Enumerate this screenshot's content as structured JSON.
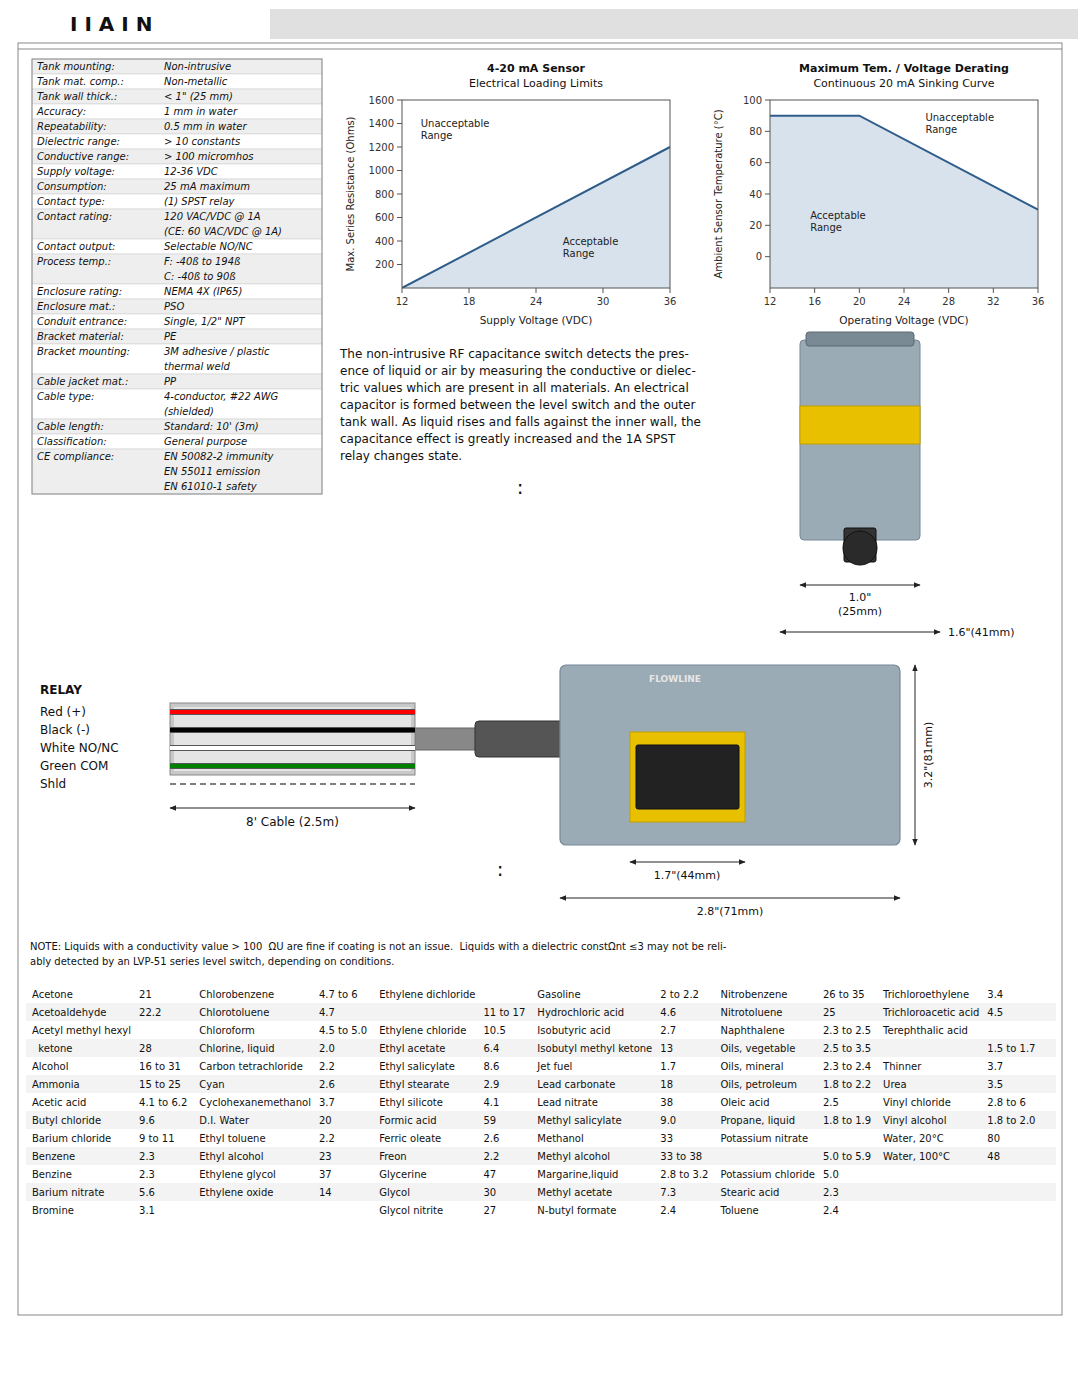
{
  "title": "I I A I N",
  "chart_data": [
    {
      "type": "area",
      "title": "4-20 mA Sensor",
      "subtitle": "Electrical Loading Limits",
      "xlabel": "Supply Voltage (VDC)",
      "ylabel": "Max. Series Resistance (Ohms)",
      "x": [
        12,
        36
      ],
      "values": [
        0,
        1200
      ],
      "xlim": [
        12,
        36
      ],
      "ylim": [
        0,
        1600
      ],
      "xticks": [
        12,
        18,
        24,
        30,
        36
      ],
      "yticks": [
        200,
        400,
        600,
        800,
        1000,
        1200,
        1400,
        1600
      ],
      "grid": false,
      "annotations": [
        "Unacceptable\nRange",
        "Acceptable\nRange"
      ]
    },
    {
      "type": "area",
      "title": "Maximum Tem. / Voltage Derating",
      "subtitle": "Continuous 20 mA Sinking Curve",
      "xlabel": "Operating Voltage (VDC)",
      "ylabel": "Ambient Sensor Temperature (°C)",
      "x": [
        12,
        20,
        36
      ],
      "values": [
        90,
        90,
        30
      ],
      "xlim": [
        12,
        36
      ],
      "ylim": [
        -20,
        100
      ],
      "xticks": [
        12,
        16,
        20,
        24,
        28,
        32,
        36
      ],
      "yticks": [
        0,
        20,
        40,
        60,
        80,
        100
      ],
      "grid": false,
      "annotations": [
        "Unacceptable\nRange",
        "Acceptable\nRange"
      ]
    }
  ],
  "specs_table": [
    [
      "Tank mounting:",
      "Non-intrusive"
    ],
    [
      "Tank mat. comp.:",
      "Non-metallic"
    ],
    [
      "Tank wall thick.:",
      "< 1\" (25 mm)"
    ],
    [
      "Accuracy:",
      "1 mm in water"
    ],
    [
      "Repeatability:",
      "0.5 mm in water"
    ],
    [
      "Dielectric range:",
      "> 10 constants"
    ],
    [
      "Conductive range:",
      "> 100 micromhos"
    ],
    [
      "Supply voltage:",
      "12-36 VDC"
    ],
    [
      "Consumption:",
      "25 mA maximum"
    ],
    [
      "Contact type:",
      "(1) SPST relay"
    ],
    [
      "Contact rating:",
      "120 VAC/VDC @ 1A\n(CE: 60 VAC/VDC @ 1A)"
    ],
    [
      "Contact output:",
      "Selectable NO/NC"
    ],
    [
      "Process temp.:",
      "F: -40ß to 194ß\nC: -40ß to 90ß"
    ],
    [
      "Enclosure rating:",
      "NEMA 4X (IP65)"
    ],
    [
      "Enclosure mat.:",
      "PSO"
    ],
    [
      "Conduit entrance:",
      "Single, 1/2\" NPT"
    ],
    [
      "Bracket material:",
      "PE"
    ],
    [
      "Bracket mounting:",
      "3M adhesive / plastic\nthermal weld"
    ],
    [
      "Cable jacket mat.:",
      "PP"
    ],
    [
      "Cable type:",
      "4-conductor, #22 AWG\n(shielded)"
    ],
    [
      "Cable length:",
      "Standard: 10' (3m)"
    ],
    [
      "Classification:",
      "General purpose"
    ],
    [
      "CE compliance:",
      "EN 50082-2 immunity\nEN 55011 emission\nEN 61010-1 safety"
    ]
  ],
  "description": [
    "The non-intrusive RF capacitance switch detects the pres-",
    "ence of liquid or air by measuring the conductive or dielec-",
    "tric values which are present in all materials. An electrical",
    "capacitor is formed between the level switch and the outer",
    "tank wall. As liquid rises and falls against the inner wall, the",
    "capacitance effect is greatly increased and the 1A SPST",
    "relay changes state."
  ],
  "separators": [
    ":",
    ":"
  ],
  "sensor_top": {
    "width": [
      "1.0\"",
      "(25mm)"
    ],
    "overall_width": "1.6\"(41mm)"
  },
  "sensor_bottom": {
    "brand": "FLOWLINE",
    "height": "3.2\"(81mm)",
    "face_width": "1.7\"(44mm)",
    "width": "2.8\"(71mm)"
  },
  "relay_items": [
    {
      "label": "RELAY"
    },
    {
      "label": "Red (+)",
      "color": "red"
    },
    {
      "label": "Black (-)",
      "color": "black"
    },
    {
      "label": "White NO/NC",
      "color": "white"
    },
    {
      "label": "Green COM",
      "color": "green"
    },
    {
      "label": "Shld",
      "color": "gray",
      "line_style": "dashed"
    }
  ],
  "cable_label": "8' Cable (2.5m)",
  "note": [
    "NOTE: Liquids with a conductivity value > 100  ΩU are fine if coating is not an issue.  Liquids with a dielectric constΩnt ≤3 may not be reli-",
    "ably detected by an LVP-51 series level switch, depending on conditions."
  ],
  "dielectric_table": [
    [
      "Acetone",
      "21",
      "Chlorobenzene",
      "4.7 to 6",
      "Ethylene dichloride",
      null,
      "Gasoline",
      "2 to 2.2",
      "Nitrobenzene",
      "26 to 35",
      "Trichloroethylene",
      "3.4"
    ],
    [
      "Acetoaldehyde",
      "22.2",
      "Chlorotoluene",
      "4.7",
      null,
      "11 to 17",
      "Hydrochloric acid",
      "4.6",
      "Nitrotoluene",
      "25",
      "Trichloroacetic acid",
      "4.5"
    ],
    [
      "Acetyl methyl hexyl",
      null,
      "Chloroform",
      "4.5 to 5.0",
      "Ethylene chloride",
      "10.5",
      "Isobutyric acid",
      "2.7",
      "Naphthalene",
      "2.3 to 2.5",
      "Terephthalic acid",
      null
    ],
    [
      "  ketone",
      "28",
      "Chlorine, liquid",
      "2.0",
      "Ethyl acetate",
      "6.4",
      "Isobutyl methyl ketone",
      "13",
      "Oils, vegetable",
      "2.5 to 3.5",
      null,
      "1.5 to 1.7"
    ],
    [
      "Alcohol",
      "16 to 31",
      "Carbon tetrachloride",
      "2.2",
      "Ethyl salicylate",
      "8.6",
      "Jet fuel",
      "1.7",
      "Oils, mineral",
      "2.3 to 2.4",
      "Thinner",
      "3.7"
    ],
    [
      "Ammonia",
      "15 to 25",
      "Cyan",
      "2.6",
      "Ethyl stearate",
      "2.9",
      "Lead carbonate",
      "18",
      "Oils, petroleum",
      "1.8 to 2.2",
      "Urea",
      "3.5"
    ],
    [
      "Acetic acid",
      "4.1 to 6.2",
      "Cyclohexanemethanol",
      "3.7",
      "Ethyl silicote",
      "4.1",
      "Lead nitrate",
      "38",
      "Oleic acid",
      "2.5",
      "Vinyl chloride",
      "2.8 to 6"
    ],
    [
      "Butyl chloride",
      "9.6",
      "D.I. Water",
      "20",
      "Formic acid",
      "59",
      "Methyl salicylate",
      "9.0",
      "Propane, liquid",
      "1.8 to 1.9",
      "Vinyl alcohol",
      "1.8 to 2.0"
    ],
    [
      "Barium chloride",
      "9 to 11",
      "Ethyl toluene",
      "2.2",
      "Ferric oleate",
      "2.6",
      "Methanol",
      "33",
      "Potassium nitrate",
      null,
      "Water, 20°C",
      "80"
    ],
    [
      "Benzene",
      "2.3",
      "Ethyl alcohol",
      "23",
      "Freon",
      "2.2",
      "Methyl alcohol",
      "33 to 38",
      null,
      "5.0 to 5.9",
      "Water, 100°C",
      "48"
    ],
    [
      "Benzine",
      "2.3",
      "Ethylene glycol",
      "37",
      "Glycerine",
      "47",
      "Margarine,liquid",
      "2.8 to 3.2",
      "Potassium chloride",
      "5.0",
      null,
      null
    ],
    [
      "Barium nitrate",
      "5.6",
      "Ethylene oxide",
      "14",
      "Glycol",
      "30",
      "Methyl acetate",
      "7.3",
      "Stearic acid",
      "2.3",
      null,
      null
    ],
    [
      "Bromine",
      "3.1",
      null,
      null,
      "Glycol nitrite",
      "27",
      "N-butyl formate",
      "2.4",
      "Toluene",
      "2.4",
      null,
      null
    ]
  ]
}
